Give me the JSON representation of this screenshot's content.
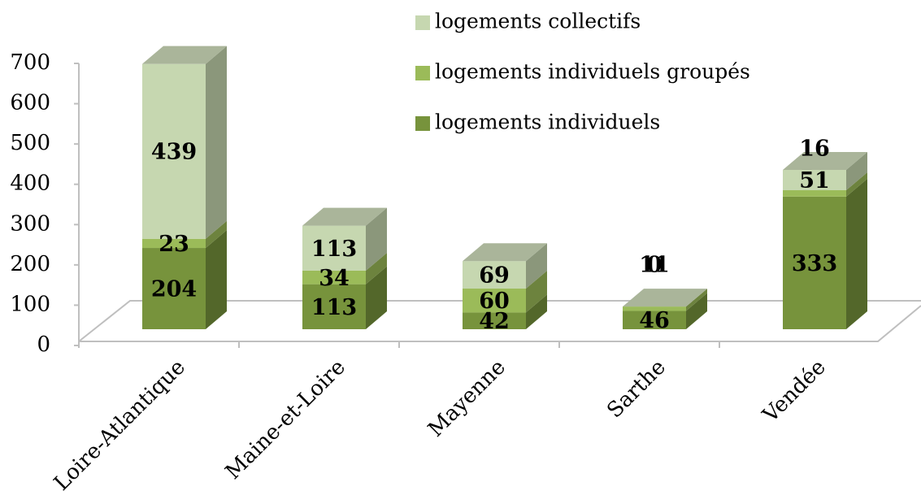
{
  "chart_data": {
    "type": "bar3d_stacked",
    "categories": [
      "Loire-Atlantique",
      "Maine-et-Loire",
      "Mayenne",
      "Sarthe",
      "Vendée"
    ],
    "series": [
      {
        "name": "logements individuels",
        "color": "#77933c",
        "values": [
          204,
          113,
          42,
          46,
          333
        ]
      },
      {
        "name": "logements individuels groupés",
        "color": "#9bbb59",
        "values": [
          23,
          34,
          60,
          11,
          16
        ]
      },
      {
        "name": "logements collectifs",
        "color": "#c6d7b0",
        "values": [
          439,
          113,
          69,
          0,
          51
        ]
      }
    ],
    "ylim": [
      0,
      700
    ],
    "yticks": [
      0,
      100,
      200,
      300,
      400,
      500,
      600,
      700
    ],
    "legend": "top-right"
  }
}
